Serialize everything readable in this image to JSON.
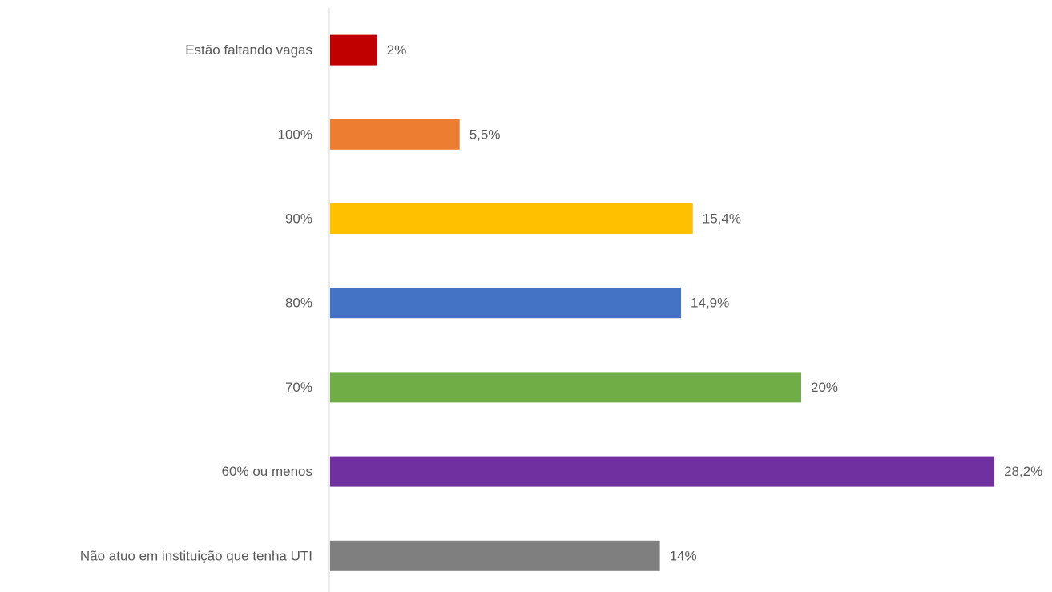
{
  "chart_data": {
    "type": "barh",
    "categories": [
      "Estão faltando vagas",
      "100%",
      "90%",
      "80%",
      "70%",
      "60% ou menos",
      "Não atuo em instituição que tenha UTI"
    ],
    "values": [
      2,
      5.5,
      15.4,
      14.9,
      20,
      28.2,
      14
    ],
    "value_labels": [
      "2%",
      "5,5%",
      "15,4%",
      "14,9%",
      "20%",
      "28,2%",
      "14%"
    ],
    "colors": [
      "#c00000",
      "#ed7d31",
      "#ffc000",
      "#4472c4",
      "#70ad47",
      "#7030a0",
      "#7f7f7f"
    ]
  }
}
